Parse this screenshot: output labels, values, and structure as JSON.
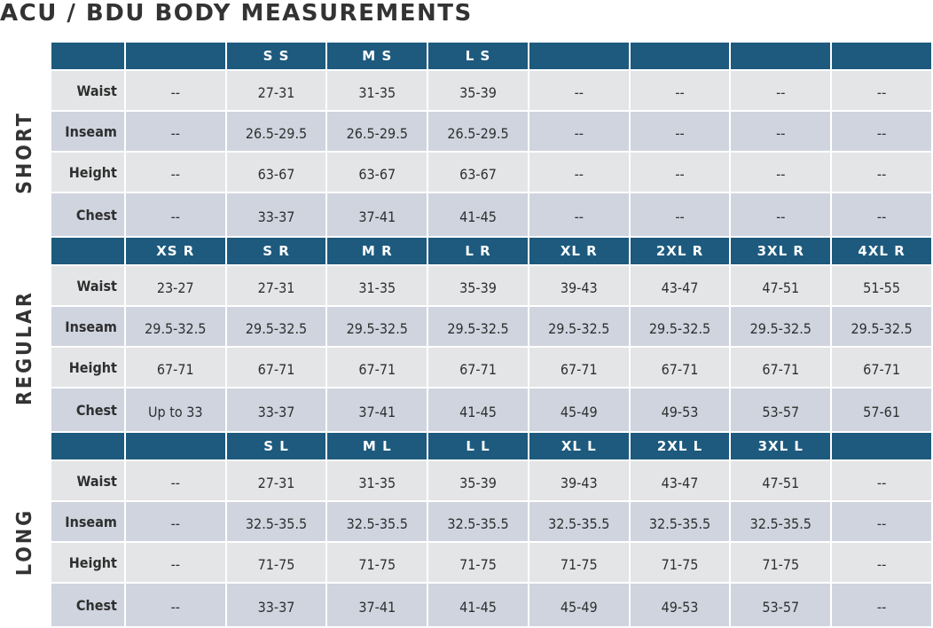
{
  "title": "ACU / BDU BODY MEASUREMENTS",
  "groups": [
    {
      "label": "SHORT",
      "header": [
        "",
        "S S",
        "M S",
        "L S",
        "",
        "",
        "",
        ""
      ],
      "rows": [
        {
          "label": "Waist",
          "values": [
            "--",
            "27-31",
            "31-35",
            "35-39",
            "--",
            "--",
            "--",
            "--"
          ]
        },
        {
          "label": "Inseam",
          "values": [
            "--",
            "26.5-29.5",
            "26.5-29.5",
            "26.5-29.5",
            "--",
            "--",
            "--",
            "--"
          ]
        },
        {
          "label": "Height",
          "values": [
            "--",
            "63-67",
            "63-67",
            "63-67",
            "--",
            "--",
            "--",
            "--"
          ]
        },
        {
          "label": "Chest",
          "values": [
            "--",
            "33-37",
            "37-41",
            "41-45",
            "--",
            "--",
            "--",
            "--"
          ]
        }
      ]
    },
    {
      "label": "REGULAR",
      "header": [
        "XS R",
        "S R",
        "M R",
        "L R",
        "XL R",
        "2XL R",
        "3XL R",
        "4XL R"
      ],
      "rows": [
        {
          "label": "Waist",
          "values": [
            "23-27",
            "27-31",
            "31-35",
            "35-39",
            "39-43",
            "43-47",
            "47-51",
            "51-55"
          ]
        },
        {
          "label": "Inseam",
          "values": [
            "29.5-32.5",
            "29.5-32.5",
            "29.5-32.5",
            "29.5-32.5",
            "29.5-32.5",
            "29.5-32.5",
            "29.5-32.5",
            "29.5-32.5"
          ]
        },
        {
          "label": "Height",
          "values": [
            "67-71",
            "67-71",
            "67-71",
            "67-71",
            "67-71",
            "67-71",
            "67-71",
            "67-71"
          ]
        },
        {
          "label": "Chest",
          "values": [
            "Up to 33",
            "33-37",
            "37-41",
            "41-45",
            "45-49",
            "49-53",
            "53-57",
            "57-61"
          ]
        }
      ]
    },
    {
      "label": "LONG",
      "header": [
        "",
        "S L",
        "M L",
        "L L",
        "XL L",
        "2XL L",
        "3XL L",
        ""
      ],
      "rows": [
        {
          "label": "Waist",
          "values": [
            "--",
            "27-31",
            "31-35",
            "35-39",
            "39-43",
            "43-47",
            "47-51",
            "--"
          ]
        },
        {
          "label": "Inseam",
          "values": [
            "--",
            "32.5-35.5",
            "32.5-35.5",
            "32.5-35.5",
            "32.5-35.5",
            "32.5-35.5",
            "32.5-35.5",
            "--"
          ]
        },
        {
          "label": "Height",
          "values": [
            "--",
            "71-75",
            "71-75",
            "71-75",
            "71-75",
            "71-75",
            "71-75",
            "--"
          ]
        },
        {
          "label": "Chest",
          "values": [
            "--",
            "33-37",
            "37-41",
            "41-45",
            "45-49",
            "49-53",
            "53-57",
            "--"
          ]
        }
      ]
    }
  ],
  "colors": {
    "header_bg": "#1d5a7e",
    "row_light": "#e4e5e6",
    "row_dark": "#cfd4df",
    "text": "#2f2f2f"
  }
}
